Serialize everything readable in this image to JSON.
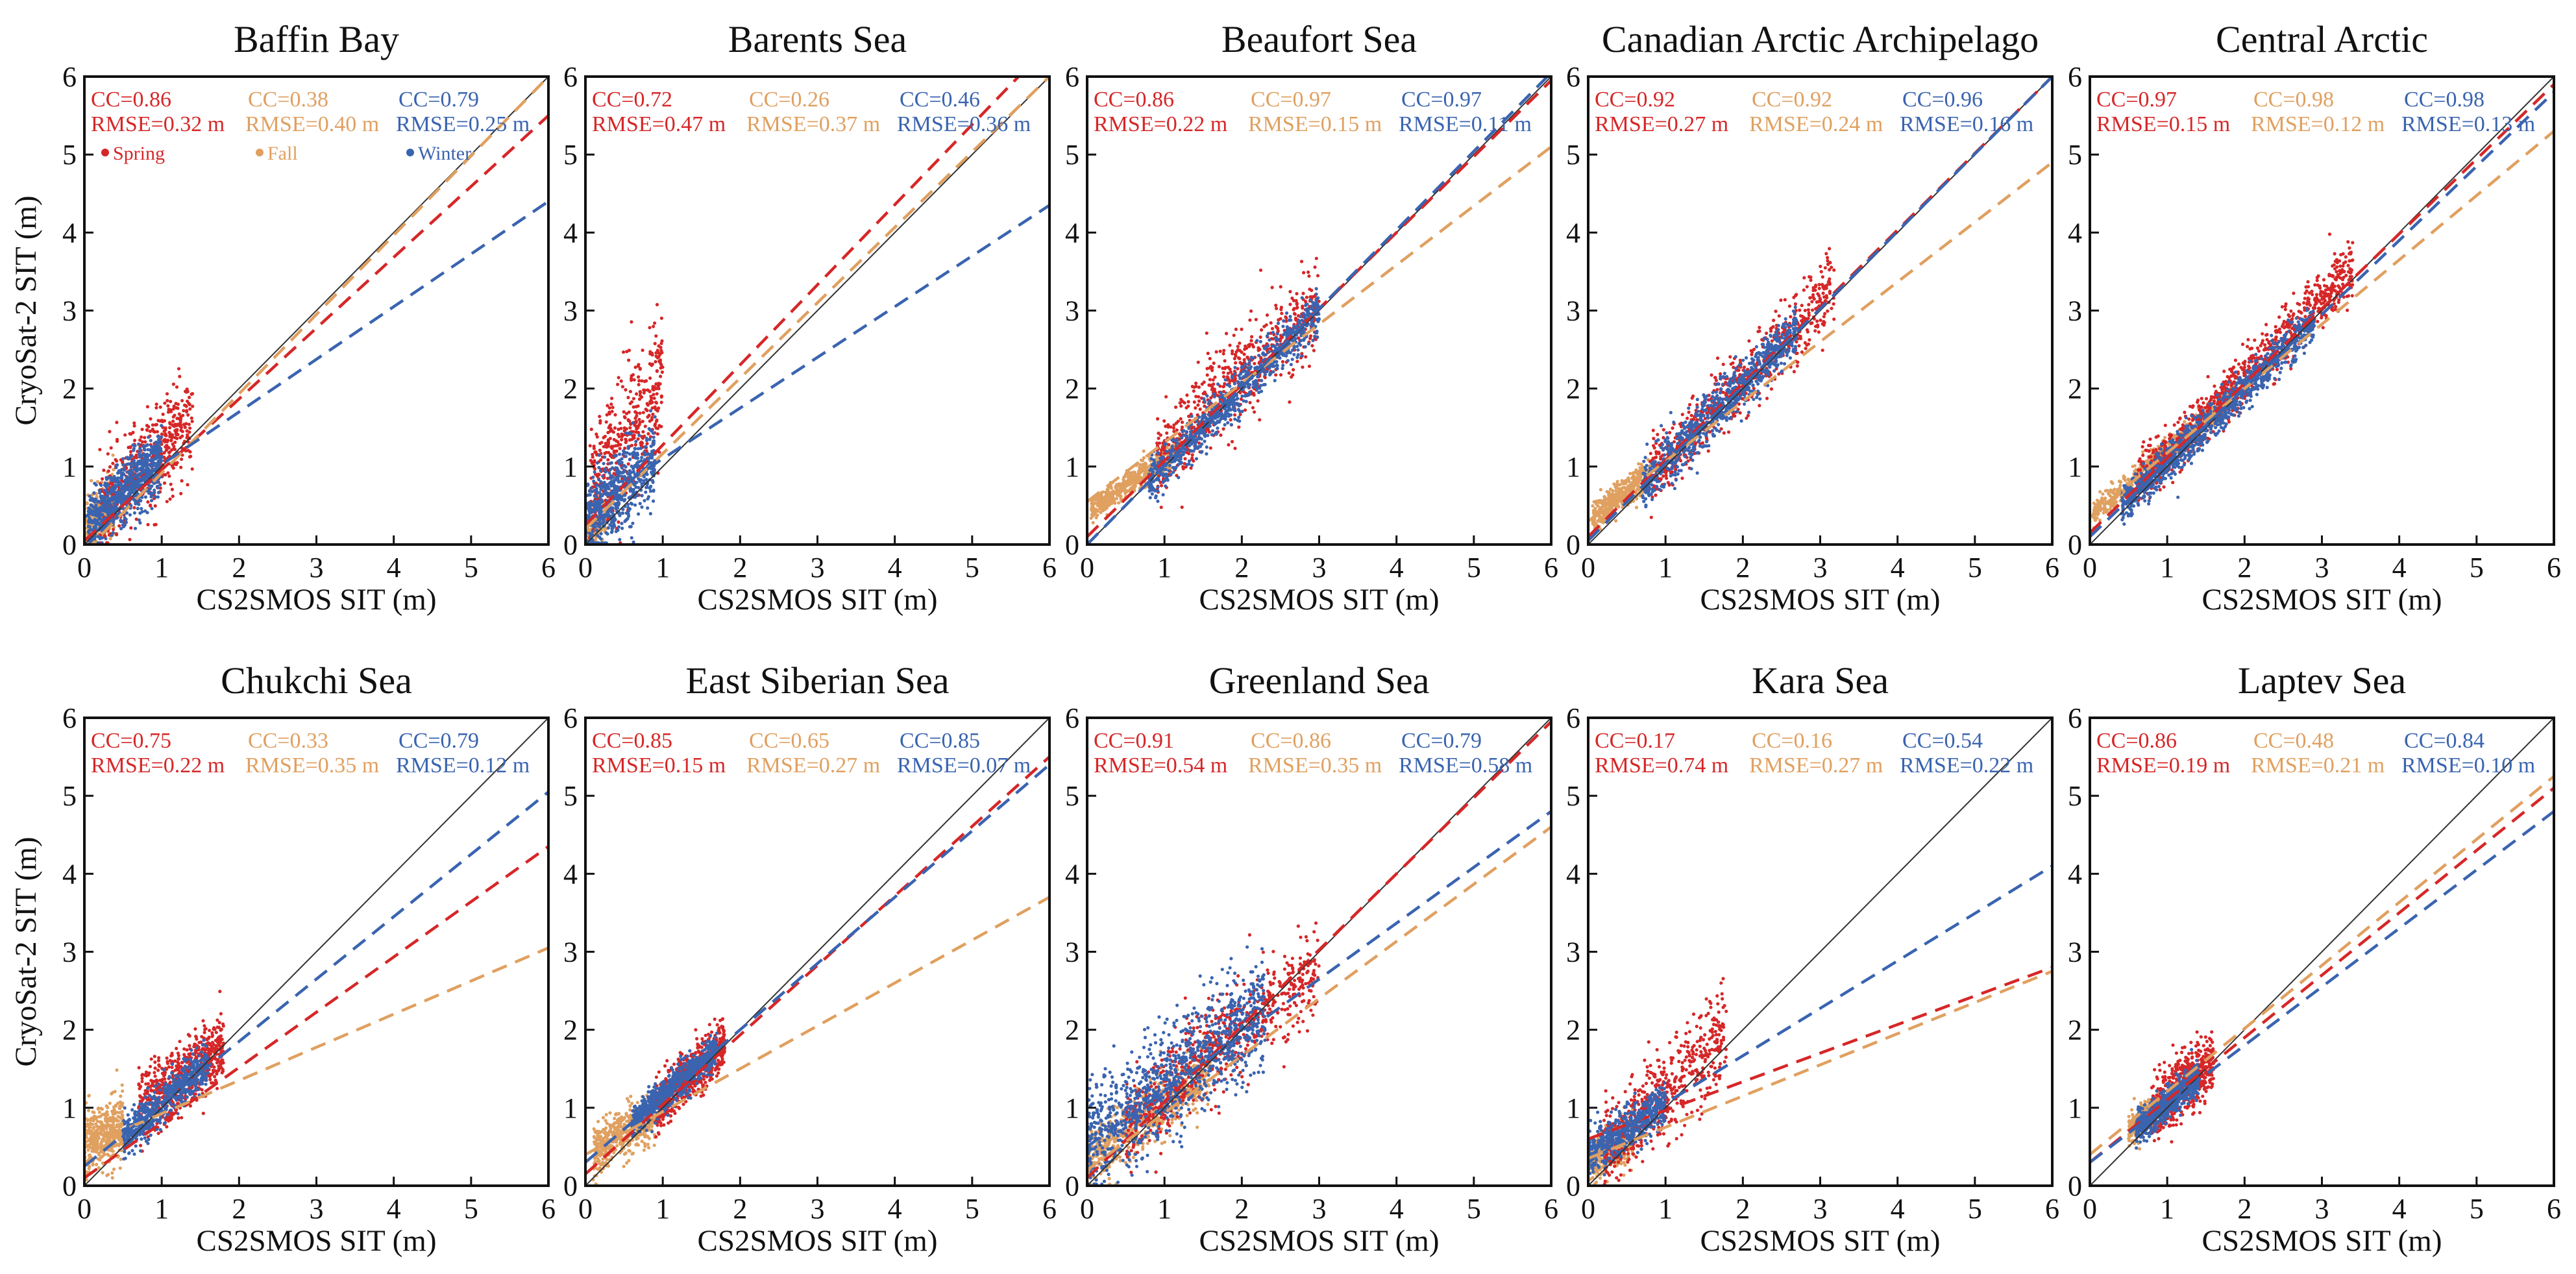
{
  "figure": {
    "xlabel": "CS2SMOS SIT (m)",
    "ylabel": "CryoSat-2 SIT (m)",
    "tick_labels": [
      "0",
      "1",
      "2",
      "3",
      "4",
      "5",
      "6"
    ]
  },
  "legend": [
    {
      "name": "Spring",
      "color": "#d62728"
    },
    {
      "name": "Fall",
      "color": "#e0a060"
    },
    {
      "name": "Winter",
      "color": "#3a64b0"
    }
  ],
  "colors": {
    "spring": "#d62728",
    "fall": "#e0a060",
    "winter": "#3a64b0",
    "one_to_one": "#333333"
  },
  "chart_data": [
    {
      "type": "scatter",
      "title": "Baffin Bay",
      "xlim": [
        0,
        6
      ],
      "ylim": [
        0,
        6
      ],
      "series": [
        {
          "name": "Spring",
          "cc": "CC=0.86",
          "rmse": "RMSE=0.32 m",
          "fit": [
            [
              0,
              0.05
            ],
            [
              6,
              5.5
            ]
          ],
          "cloud": {
            "xr": [
              0.2,
              1.4
            ],
            "k": 1.0,
            "b": 0.2,
            "s": 0.3,
            "n": 550
          }
        },
        {
          "name": "Fall",
          "cc": "CC=0.38",
          "rmse": "RMSE=0.40 m",
          "fit": [
            [
              0,
              -0.1
            ],
            [
              6,
              6.0
            ]
          ],
          "cloud": {
            "xr": [
              0.0,
              0.4
            ],
            "k": 1.0,
            "b": 0.2,
            "s": 0.2,
            "n": 250
          }
        },
        {
          "name": "Winter",
          "cc": "CC=0.79",
          "rmse": "RMSE=0.25 m",
          "fit": [
            [
              0,
              0.35
            ],
            [
              6,
              4.4
            ]
          ],
          "cloud": {
            "xr": [
              0.05,
              1.0
            ],
            "k": 0.9,
            "b": 0.2,
            "s": 0.2,
            "n": 750
          }
        }
      ]
    },
    {
      "type": "scatter",
      "title": "Barents Sea",
      "xlim": [
        0,
        6
      ],
      "ylim": [
        0,
        6
      ],
      "series": [
        {
          "name": "Spring",
          "cc": "CC=0.72",
          "rmse": "RMSE=0.47 m",
          "fit": [
            [
              0,
              0.25
            ],
            [
              5.6,
              6.0
            ]
          ],
          "cloud": {
            "xr": [
              0.05,
              1.0
            ],
            "k": 1.5,
            "b": 0.55,
            "s": 0.45,
            "n": 450
          }
        },
        {
          "name": "Fall",
          "cc": "CC=0.26",
          "rmse": "RMSE=0.37 m",
          "fit": [
            [
              0,
              0.2
            ],
            [
              6,
              6.0
            ]
          ],
          "cloud": {
            "xr": [
              0.0,
              0.3
            ],
            "k": 1.0,
            "b": 0.1,
            "s": 0.12,
            "n": 150
          }
        },
        {
          "name": "Winter",
          "cc": "CC=0.46",
          "rmse": "RMSE=0.36 m",
          "fit": [
            [
              0,
              0.45
            ],
            [
              6,
              4.35
            ]
          ],
          "cloud": {
            "xr": [
              0.0,
              0.9
            ],
            "k": 0.9,
            "b": 0.3,
            "s": 0.25,
            "n": 650
          }
        }
      ]
    },
    {
      "type": "scatter",
      "title": "Beaufort Sea",
      "xlim": [
        0,
        6
      ],
      "ylim": [
        0,
        6
      ],
      "series": [
        {
          "name": "Spring",
          "cc": "CC=0.86",
          "rmse": "RMSE=0.22 m",
          "fit": [
            [
              0,
              0.1
            ],
            [
              6,
              5.95
            ]
          ],
          "cloud": {
            "xr": [
              0.9,
              3.0
            ],
            "k": 0.95,
            "b": 0.25,
            "s": 0.3,
            "n": 650
          }
        },
        {
          "name": "Fall",
          "cc": "CC=0.97",
          "rmse": "RMSE=0.15 m",
          "fit": [
            [
              0,
              0.55
            ],
            [
              6,
              5.1
            ]
          ],
          "cloud": {
            "xr": [
              0.05,
              1.2
            ],
            "k": 0.7,
            "b": 0.4,
            "s": 0.08,
            "n": 550
          }
        },
        {
          "name": "Winter",
          "cc": "CC=0.97",
          "rmse": "RMSE=0.11 m",
          "fit": [
            [
              0,
              0.0
            ],
            [
              6,
              6.05
            ]
          ],
          "cloud": {
            "xr": [
              0.8,
              3.0
            ],
            "k": 1.0,
            "b": 0.0,
            "s": 0.14,
            "n": 850
          }
        }
      ]
    },
    {
      "type": "scatter",
      "title": "Canadian Arctic Archipelago",
      "xlim": [
        0,
        6
      ],
      "ylim": [
        0,
        6
      ],
      "series": [
        {
          "name": "Spring",
          "cc": "CC=0.92",
          "rmse": "RMSE=0.27 m",
          "fit": [
            [
              0,
              0.1
            ],
            [
              6,
              6.0
            ]
          ],
          "cloud": {
            "xr": [
              0.8,
              3.2
            ],
            "k": 1.0,
            "b": 0.1,
            "s": 0.22,
            "n": 650
          }
        },
        {
          "name": "Fall",
          "cc": "CC=0.92",
          "rmse": "RMSE=0.24 m",
          "fit": [
            [
              0,
              0.3
            ],
            [
              6,
              4.9
            ]
          ],
          "cloud": {
            "xr": [
              0.05,
              0.8
            ],
            "k": 0.75,
            "b": 0.3,
            "s": 0.1,
            "n": 450
          }
        },
        {
          "name": "Winter",
          "cc": "CC=0.96",
          "rmse": "RMSE=0.16 m",
          "fit": [
            [
              0,
              0.05
            ],
            [
              6,
              6.0
            ]
          ],
          "cloud": {
            "xr": [
              0.7,
              2.7
            ],
            "k": 1.0,
            "b": 0.05,
            "s": 0.16,
            "n": 850
          }
        }
      ]
    },
    {
      "type": "scatter",
      "title": "Central Arctic",
      "xlim": [
        0,
        6
      ],
      "ylim": [
        0,
        6
      ],
      "series": [
        {
          "name": "Spring",
          "cc": "CC=0.97",
          "rmse": "RMSE=0.15 m",
          "fit": [
            [
              0,
              0.15
            ],
            [
              6,
              5.9
            ]
          ],
          "cloud": {
            "xr": [
              0.6,
              3.4
            ],
            "k": 1.0,
            "b": 0.15,
            "s": 0.17,
            "n": 950
          }
        },
        {
          "name": "Fall",
          "cc": "CC=0.98",
          "rmse": "RMSE=0.12 m",
          "fit": [
            [
              0,
              0.35
            ],
            [
              6,
              5.3
            ]
          ],
          "cloud": {
            "xr": [
              0.05,
              1.9
            ],
            "k": 0.85,
            "b": 0.35,
            "s": 0.08,
            "n": 650
          }
        },
        {
          "name": "Winter",
          "cc": "CC=0.98",
          "rmse": "RMSE=0.13 m",
          "fit": [
            [
              0,
              0.1
            ],
            [
              6,
              5.8
            ]
          ],
          "cloud": {
            "xr": [
              0.4,
              2.9
            ],
            "k": 0.95,
            "b": 0.1,
            "s": 0.12,
            "n": 1050
          }
        }
      ]
    },
    {
      "type": "scatter",
      "title": "Chukchi Sea",
      "xlim": [
        0,
        6
      ],
      "ylim": [
        0,
        6
      ],
      "series": [
        {
          "name": "Spring",
          "cc": "CC=0.75",
          "rmse": "RMSE=0.22 m",
          "fit": [
            [
              0,
              0.1
            ],
            [
              6,
              4.35
            ]
          ],
          "cloud": {
            "xr": [
              0.7,
              1.8
            ],
            "k": 0.75,
            "b": 0.45,
            "s": 0.22,
            "n": 650
          }
        },
        {
          "name": "Fall",
          "cc": "CC=0.33",
          "rmse": "RMSE=0.35 m",
          "fit": [
            [
              0,
              0.5
            ],
            [
              6,
              3.05
            ]
          ],
          "cloud": {
            "xr": [
              0.0,
              0.5
            ],
            "k": 0.4,
            "b": 0.55,
            "s": 0.2,
            "n": 450
          }
        },
        {
          "name": "Winter",
          "cc": "CC=0.79",
          "rmse": "RMSE=0.12 m",
          "fit": [
            [
              0,
              0.25
            ],
            [
              6,
              5.05
            ]
          ],
          "cloud": {
            "xr": [
              0.5,
              1.6
            ],
            "k": 0.85,
            "b": 0.2,
            "s": 0.13,
            "n": 650
          }
        }
      ]
    },
    {
      "type": "scatter",
      "title": "East Siberian Sea",
      "xlim": [
        0,
        6
      ],
      "ylim": [
        0,
        6
      ],
      "series": [
        {
          "name": "Spring",
          "cc": "CC=0.85",
          "rmse": "RMSE=0.15 m",
          "fit": [
            [
              0,
              0.15
            ],
            [
              6,
              5.5
            ]
          ],
          "cloud": {
            "xr": [
              0.9,
              1.8
            ],
            "k": 0.9,
            "b": 0.2,
            "s": 0.17,
            "n": 650
          }
        },
        {
          "name": "Fall",
          "cc": "CC=0.65",
          "rmse": "RMSE=0.27 m",
          "fit": [
            [
              0,
              0.4
            ],
            [
              6,
              3.7
            ]
          ],
          "cloud": {
            "xr": [
              0.1,
              0.9
            ],
            "k": 0.55,
            "b": 0.4,
            "s": 0.15,
            "n": 550
          }
        },
        {
          "name": "Winter",
          "cc": "CC=0.85",
          "rmse": "RMSE=0.07 m",
          "fit": [
            [
              0,
              0.3
            ],
            [
              6,
              5.4
            ]
          ],
          "cloud": {
            "xr": [
              0.6,
              1.7
            ],
            "k": 0.85,
            "b": 0.3,
            "s": 0.1,
            "n": 750
          }
        }
      ]
    },
    {
      "type": "scatter",
      "title": "Greenland Sea",
      "xlim": [
        0,
        6
      ],
      "ylim": [
        0,
        6
      ],
      "series": [
        {
          "name": "Spring",
          "cc": "CC=0.91",
          "rmse": "RMSE=0.54 m",
          "fit": [
            [
              0,
              0.1
            ],
            [
              6,
              5.95
            ]
          ],
          "cloud": {
            "xr": [
              0.5,
              3.0
            ],
            "k": 0.8,
            "b": 0.4,
            "s": 0.3,
            "n": 650
          }
        },
        {
          "name": "Fall",
          "cc": "CC=0.86",
          "rmse": "RMSE=0.35 m",
          "fit": [
            [
              0,
              0.2
            ],
            [
              6,
              4.6
            ]
          ],
          "cloud": {
            "xr": [
              0.0,
              1.6
            ],
            "k": 0.75,
            "b": 0.3,
            "s": 0.2,
            "n": 650
          }
        },
        {
          "name": "Winter",
          "cc": "CC=0.79",
          "rmse": "RMSE=0.58 m",
          "fit": [
            [
              0,
              0.5
            ],
            [
              6,
              4.8
            ]
          ],
          "cloud": {
            "xr": [
              0.0,
              2.3
            ],
            "k": 0.75,
            "b": 0.55,
            "s": 0.35,
            "n": 1050
          }
        }
      ]
    },
    {
      "type": "scatter",
      "title": "Kara Sea",
      "xlim": [
        0,
        6
      ],
      "ylim": [
        0,
        6
      ],
      "series": [
        {
          "name": "Spring",
          "cc": "CC=0.17",
          "rmse": "RMSE=0.74 m",
          "fit": [
            [
              0,
              0.6
            ],
            [
              6,
              2.8
            ]
          ],
          "cloud": {
            "xr": [
              0.2,
              1.8
            ],
            "k": 0.9,
            "b": 0.3,
            "s": 0.3,
            "n": 550
          }
        },
        {
          "name": "Fall",
          "cc": "CC=0.16",
          "rmse": "RMSE=0.27 m",
          "fit": [
            [
              0,
              0.35
            ],
            [
              6,
              2.75
            ]
          ],
          "cloud": {
            "xr": [
              0.0,
              0.6
            ],
            "k": 0.6,
            "b": 0.3,
            "s": 0.15,
            "n": 350
          }
        },
        {
          "name": "Winter",
          "cc": "CC=0.54",
          "rmse": "RMSE=0.22 m",
          "fit": [
            [
              0,
              0.45
            ],
            [
              6,
              4.1
            ]
          ],
          "cloud": {
            "xr": [
              0.0,
              1.0
            ],
            "k": 0.65,
            "b": 0.4,
            "s": 0.14,
            "n": 550
          }
        }
      ]
    },
    {
      "type": "scatter",
      "title": "Laptev Sea",
      "xlim": [
        0,
        6
      ],
      "ylim": [
        0,
        6
      ],
      "series": [
        {
          "name": "Spring",
          "cc": "CC=0.86",
          "rmse": "RMSE=0.19 m",
          "fit": [
            [
              0,
              0.3
            ],
            [
              6,
              5.1
            ]
          ],
          "cloud": {
            "xr": [
              0.8,
              1.6
            ],
            "k": 0.9,
            "b": 0.2,
            "s": 0.2,
            "n": 550
          }
        },
        {
          "name": "Fall",
          "cc": "CC=0.48",
          "rmse": "RMSE=0.21 m",
          "fit": [
            [
              0,
              0.4
            ],
            [
              6,
              5.25
            ]
          ],
          "cloud": {
            "xr": [
              0.5,
              0.9
            ],
            "k": 0.8,
            "b": 0.3,
            "s": 0.1,
            "n": 250
          }
        },
        {
          "name": "Winter",
          "cc": "CC=0.84",
          "rmse": "RMSE=0.10 m",
          "fit": [
            [
              0,
              0.3
            ],
            [
              6,
              4.8
            ]
          ],
          "cloud": {
            "xr": [
              0.6,
              1.4
            ],
            "k": 0.85,
            "b": 0.2,
            "s": 0.1,
            "n": 650
          }
        }
      ]
    }
  ]
}
